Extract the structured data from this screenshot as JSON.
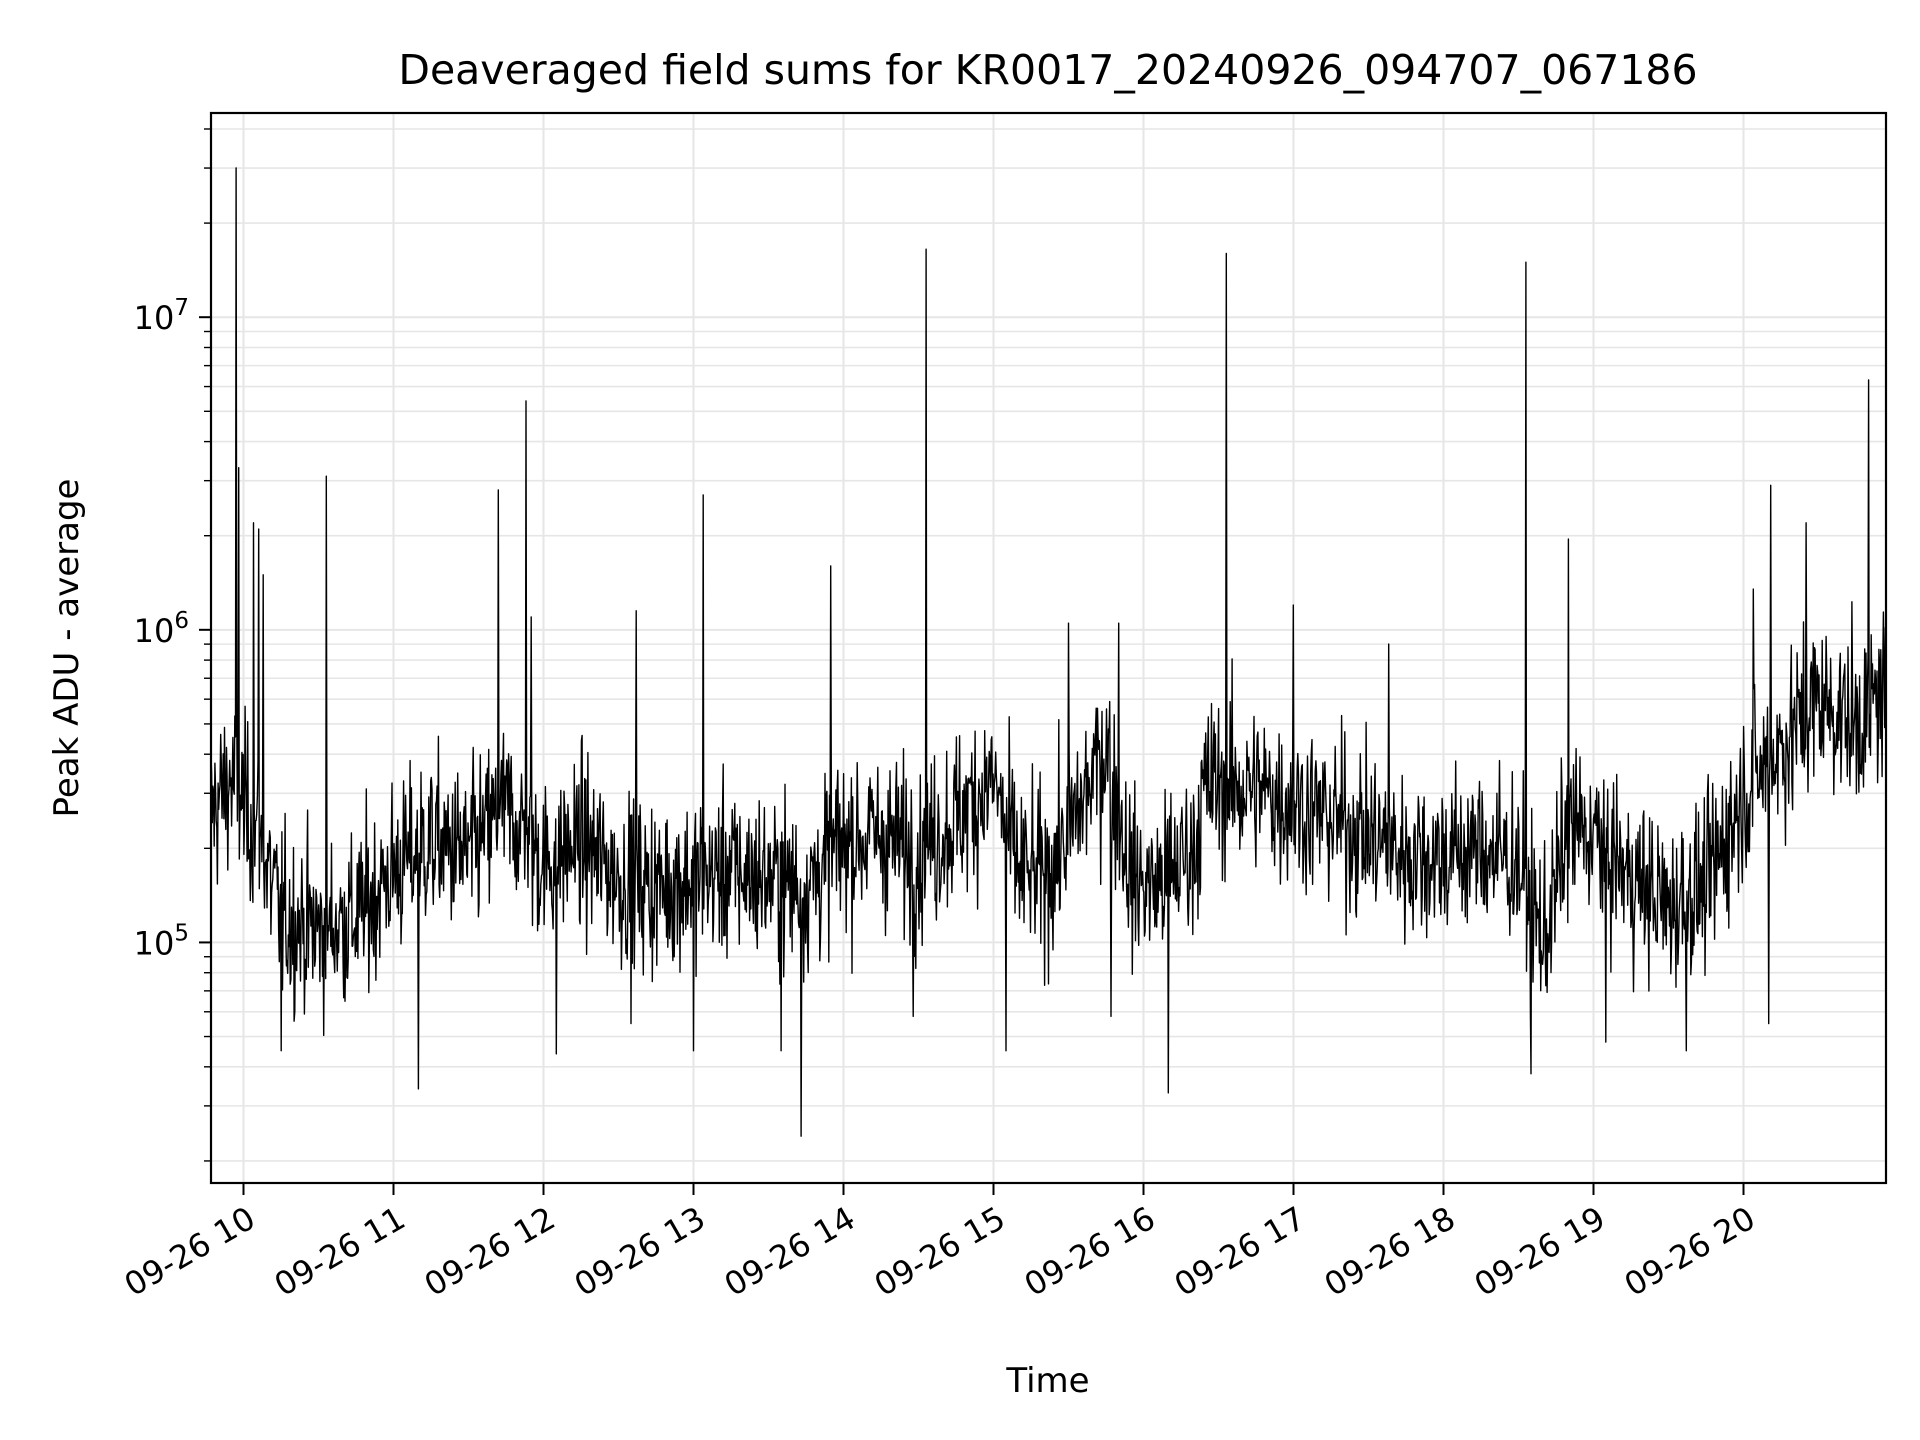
{
  "chart_data": {
    "type": "line",
    "title": "Deaveraged field sums for KR0017_20240926_094707_067186",
    "xlabel": "Time",
    "ylabel": "Peak ADU - average",
    "yscale": "log",
    "grid": true,
    "series_color": "#000000",
    "x_ticks": [
      "09-26 10",
      "09-26 11",
      "09-26 12",
      "09-26 13",
      "09-26 14",
      "09-26 15",
      "09-26 16",
      "09-26 17",
      "09-26 18",
      "09-26 19",
      "09-26 20"
    ],
    "y_ticks": [
      {
        "base": "10",
        "exp": "5",
        "value": 100000
      },
      {
        "base": "10",
        "exp": "6",
        "value": 1000000
      },
      {
        "base": "10",
        "exp": "7",
        "value": 10000000
      }
    ],
    "xlim": [
      "2024-09-26 09:47",
      "2024-09-26 20:57"
    ],
    "ylim": [
      17000,
      45000000
    ],
    "series": [
      {
        "x_start": "2024-09-26 09:47",
        "x_end": "2024-09-26 20:57",
        "baseline": [
          [
            "09:47",
            260000
          ],
          [
            "09:55",
            330000
          ],
          [
            "10:05",
            230000
          ],
          [
            "10:15",
            120000
          ],
          [
            "10:30",
            110000
          ],
          [
            "10:45",
            120000
          ],
          [
            "11:00",
            170000
          ],
          [
            "11:15",
            210000
          ],
          [
            "11:30",
            190000
          ],
          [
            "11:45",
            270000
          ],
          [
            "12:00",
            180000
          ],
          [
            "12:15",
            210000
          ],
          [
            "12:30",
            160000
          ],
          [
            "12:45",
            150000
          ],
          [
            "13:00",
            160000
          ],
          [
            "13:15",
            170000
          ],
          [
            "13:30",
            160000
          ],
          [
            "13:45",
            150000
          ],
          [
            "14:00",
            210000
          ],
          [
            "14:15",
            220000
          ],
          [
            "14:30",
            190000
          ],
          [
            "14:45",
            250000
          ],
          [
            "15:00",
            330000
          ],
          [
            "15:10",
            170000
          ],
          [
            "15:20",
            160000
          ],
          [
            "15:30",
            220000
          ],
          [
            "15:45",
            430000
          ],
          [
            "15:55",
            160000
          ],
          [
            "16:05",
            150000
          ],
          [
            "16:20",
            200000
          ],
          [
            "16:25",
            320000
          ],
          [
            "16:45",
            310000
          ],
          [
            "17:00",
            280000
          ],
          [
            "17:15",
            250000
          ],
          [
            "17:30",
            220000
          ],
          [
            "17:45",
            190000
          ],
          [
            "18:00",
            190000
          ],
          [
            "18:15",
            200000
          ],
          [
            "18:30",
            180000
          ],
          [
            "18:40",
            100000
          ],
          [
            "18:50",
            230000
          ],
          [
            "19:00",
            220000
          ],
          [
            "19:15",
            160000
          ],
          [
            "19:30",
            130000
          ],
          [
            "19:45",
            150000
          ],
          [
            "20:00",
            300000
          ],
          [
            "20:15",
            420000
          ],
          [
            "20:30",
            600000
          ],
          [
            "20:45",
            500000
          ],
          [
            "20:57",
            650000
          ]
        ],
        "spikes": [
          [
            "09:57",
            30000000
          ],
          [
            "09:58",
            3300000
          ],
          [
            "10:04",
            2200000
          ],
          [
            "10:06",
            2100000
          ],
          [
            "10:08",
            1500000
          ],
          [
            "10:33",
            3100000
          ],
          [
            "11:42",
            2800000
          ],
          [
            "11:53",
            5400000
          ],
          [
            "11:55",
            1100000
          ],
          [
            "12:37",
            1150000
          ],
          [
            "13:04",
            2700000
          ],
          [
            "13:55",
            1600000
          ],
          [
            "14:33",
            16500000
          ],
          [
            "15:30",
            1050000
          ],
          [
            "15:50",
            1050000
          ],
          [
            "16:33",
            16000000
          ],
          [
            "17:00",
            1200000
          ],
          [
            "17:38",
            900000
          ],
          [
            "18:33",
            15000000
          ],
          [
            "18:50",
            1950000
          ],
          [
            "19:05",
            870000
          ],
          [
            "20:04",
            1350000
          ],
          [
            "20:11",
            2900000
          ],
          [
            "20:25",
            2200000
          ],
          [
            "20:50",
            6300000
          ]
        ],
        "dips": [
          [
            "10:15",
            45000
          ],
          [
            "11:10",
            34000
          ],
          [
            "12:05",
            44000
          ],
          [
            "12:35",
            55000
          ],
          [
            "13:00",
            45000
          ],
          [
            "13:35",
            45000
          ],
          [
            "13:43",
            24000
          ],
          [
            "14:28",
            58000
          ],
          [
            "15:05",
            45000
          ],
          [
            "15:47",
            58000
          ],
          [
            "16:10",
            33000
          ],
          [
            "18:35",
            38000
          ],
          [
            "19:05",
            48000
          ],
          [
            "19:37",
            45000
          ],
          [
            "20:10",
            55000
          ]
        ]
      }
    ]
  }
}
